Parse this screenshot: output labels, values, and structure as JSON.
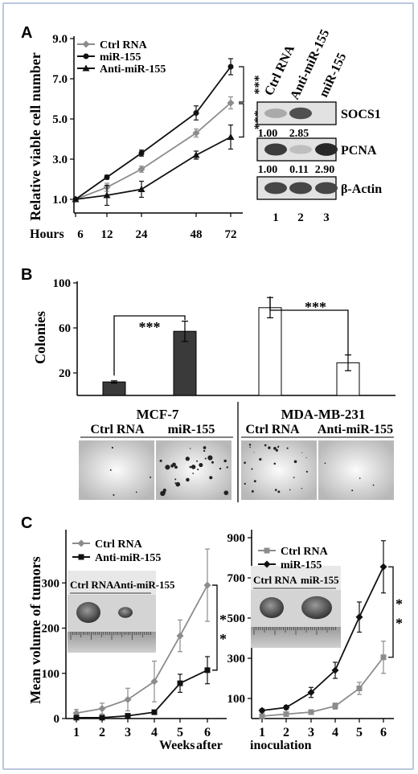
{
  "panels": {
    "a": "A",
    "b": "B",
    "c": "C"
  },
  "chart_data": [
    {
      "type": "line",
      "id": "A",
      "ylabel": "Relative viable cell number",
      "x_axis_label": "Hours",
      "categories": [
        "6",
        "12",
        "24",
        "48",
        "72"
      ],
      "yticks": [
        "1.0",
        "3.0",
        "5.0",
        "7.0",
        "9.0"
      ],
      "ylim": [
        0,
        9
      ],
      "legend_position": "top-left",
      "series": [
        {
          "name": "Ctrl RNA",
          "color": "#8c8c8c",
          "values": [
            1.0,
            1.6,
            2.5,
            4.3,
            5.8
          ],
          "err": [
            0.05,
            0.2,
            0.15,
            0.2,
            0.3
          ]
        },
        {
          "name": "miR-155",
          "color": "#111111",
          "values": [
            1.0,
            2.1,
            3.3,
            5.3,
            7.6
          ],
          "err": [
            0.05,
            0.1,
            0.15,
            0.35,
            0.4
          ]
        },
        {
          "name": "Anti-miR-155",
          "color": "#111111",
          "values": [
            1.0,
            1.2,
            1.5,
            3.2,
            4.1
          ],
          "err": [
            0.05,
            0.5,
            0.4,
            0.2,
            0.6
          ]
        }
      ],
      "significance": [
        "***",
        "***"
      ]
    },
    {
      "type": "blot",
      "id": "A-western",
      "lanes": [
        "Ctrl RNA",
        "Anti-miR-155",
        "miR-155"
      ],
      "lane_numbers": [
        "1",
        "2",
        "3"
      ],
      "rows": [
        {
          "label": "SOCS1",
          "values": [
            "1.00",
            "2.85"
          ],
          "intensity": [
            0.3,
            0.75,
            0
          ]
        },
        {
          "label": "PCNA",
          "values": [
            "1.00",
            "0.11",
            "2.90"
          ],
          "intensity": [
            0.85,
            0.2,
            0.95
          ]
        },
        {
          "label": "β-Actin",
          "values": [],
          "intensity": [
            0.8,
            0.8,
            0.8
          ]
        }
      ]
    },
    {
      "type": "bar",
      "id": "B",
      "ylabel": "Colonies",
      "yticks": [
        "20",
        "60",
        "100"
      ],
      "ylim": [
        0,
        100
      ],
      "groups": [
        {
          "name": "MCF-7",
          "conditions": [
            "Ctrl RNA",
            "miR-155"
          ],
          "values": [
            12,
            57
          ],
          "err": [
            1,
            9
          ],
          "fill": "#3a3a3a"
        },
        {
          "name": "MDA-MB-231",
          "conditions": [
            "Ctrl RNA",
            "Anti-miR-155"
          ],
          "values": [
            78,
            29
          ],
          "err": [
            9,
            7
          ],
          "fill": "#ffffff"
        }
      ],
      "significance": [
        "***",
        "***"
      ]
    },
    {
      "type": "line",
      "id": "C-left",
      "ylabel": "Mean volume of tumors",
      "x": [
        1,
        2,
        3,
        4,
        5,
        6
      ],
      "yticks": [
        "0",
        "100",
        "200",
        "300"
      ],
      "ylim": [
        0,
        400
      ],
      "legend_position": "top-left",
      "series": [
        {
          "name": "Ctrl RNA",
          "color": "#8c8c8c",
          "values": [
            12,
            22,
            42,
            82,
            183,
            295
          ],
          "err": [
            8,
            12,
            25,
            45,
            35,
            80
          ]
        },
        {
          "name": "Anti-miR-155",
          "color": "#111111",
          "values": [
            2,
            2,
            6,
            14,
            78,
            107
          ],
          "err": [
            1,
            2,
            3,
            4,
            20,
            30
          ]
        }
      ],
      "inset_labels": [
        "Ctrl RNA",
        "Anti-miR-155"
      ],
      "significance": [
        "*",
        "*"
      ]
    },
    {
      "type": "line",
      "id": "C-right",
      "x": [
        1,
        2,
        3,
        4,
        5,
        6
      ],
      "yticks": [
        "100",
        "300",
        "500",
        "700",
        "900"
      ],
      "ylim": [
        0,
        900
      ],
      "legend_position": "top-left",
      "series": [
        {
          "name": "Ctrl RNA",
          "color": "#8c8c8c",
          "values": [
            12,
            22,
            32,
            62,
            150,
            305
          ],
          "err": [
            5,
            8,
            10,
            15,
            30,
            80
          ]
        },
        {
          "name": "miR-155",
          "color": "#111111",
          "values": [
            40,
            55,
            130,
            240,
            505,
            755
          ],
          "err": [
            8,
            10,
            25,
            40,
            75,
            130
          ]
        }
      ],
      "inset_labels": [
        "Ctrl RNA",
        "miR-155"
      ],
      "significance": [
        "*",
        "*"
      ]
    }
  ],
  "bottom_label": {
    "weeks": "Weeks",
    "after": "after",
    "inoculation": "inoculation"
  }
}
